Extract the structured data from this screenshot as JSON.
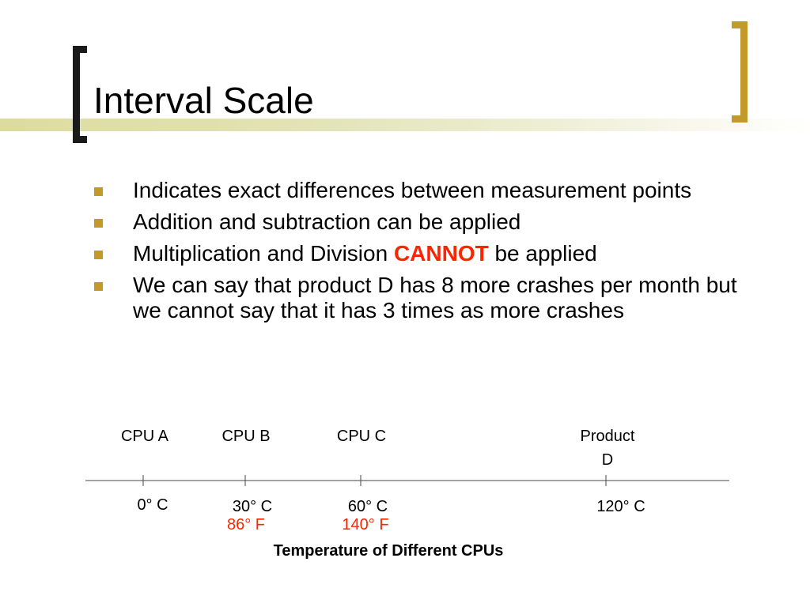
{
  "slide": {
    "title": "Interval Scale",
    "accent_color": "#c39a2a",
    "highlight_color": "#ff2400"
  },
  "bullets": [
    {
      "text": "Indicates exact differences between measurement points"
    },
    {
      "text": "Addition and subtraction can be applied"
    },
    {
      "text_before": "Multiplication and Division",
      "highlight": "CANNOT",
      "text_after": "be applied"
    },
    {
      "text": "We can say that product D has 8 more crashes per month but we cannot say that it has 3 times as more crashes"
    }
  ],
  "scale": {
    "caption": "Temperature of Different CPUs",
    "points": [
      {
        "label": [
          "CPU A"
        ],
        "celsius": "0° C",
        "fahrenheit": ""
      },
      {
        "label": [
          "CPU B"
        ],
        "celsius": "30° C",
        "fahrenheit": "86° F"
      },
      {
        "label": [
          "CPU C"
        ],
        "celsius": "60° C",
        "fahrenheit": "140° F"
      },
      {
        "label": [
          "Product",
          "D"
        ],
        "celsius": "120° C",
        "fahrenheit": ""
      }
    ]
  }
}
